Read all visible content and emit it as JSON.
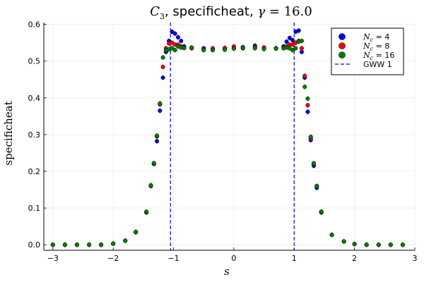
{
  "chart_data": {
    "type": "scatter",
    "title_parts": {
      "lead": "C",
      "lead_sub": "3",
      "middle": ", specificheat, ",
      "gamma": "γ",
      "tail": " = 16.0"
    },
    "xlabel": "s",
    "ylabel": "specificheat",
    "xlim": [
      -3.15,
      3.0
    ],
    "ylim": [
      -0.015,
      0.605
    ],
    "xticks": [
      -3,
      -2,
      -1,
      0,
      1,
      2,
      3
    ],
    "xtick_labels": [
      "−3",
      "−2",
      "−1",
      "0",
      "1",
      "2",
      "3"
    ],
    "yticks": [
      0.0,
      0.1,
      0.2,
      0.3,
      0.4,
      0.5,
      0.6
    ],
    "ytick_labels": [
      "0.0",
      "0.1",
      "0.2",
      "0.3",
      "0.4",
      "0.5",
      "0.6"
    ],
    "grid": true,
    "legend_position": "top-right",
    "series": [
      {
        "legend_sym": "N",
        "legend_sub": "c",
        "legend_tail": " = 4",
        "color": "#0000ff",
        "points": [
          [
            -3.0,
            0.0
          ],
          [
            -2.8,
            0.0
          ],
          [
            -2.6,
            0.0
          ],
          [
            -2.4,
            0.0
          ],
          [
            -2.2,
            0.0
          ],
          [
            -2.0,
            0.003
          ],
          [
            -1.8,
            0.011
          ],
          [
            -1.625,
            0.034
          ],
          [
            -1.45,
            0.088
          ],
          [
            -1.375,
            0.16
          ],
          [
            -1.325,
            0.22
          ],
          [
            -1.275,
            0.282
          ],
          [
            -1.225,
            0.365
          ],
          [
            -1.175,
            0.455
          ],
          [
            -1.125,
            0.525
          ],
          [
            -1.075,
            0.555
          ],
          [
            -1.025,
            0.58
          ],
          [
            -0.975,
            0.575
          ],
          [
            -0.925,
            0.565
          ],
          [
            -0.875,
            0.555
          ],
          [
            -0.825,
            0.54
          ],
          [
            -0.7,
            0.537
          ],
          [
            -0.5,
            0.535
          ],
          [
            -0.35,
            0.532
          ],
          [
            -0.15,
            0.533
          ],
          [
            0.0,
            0.535
          ],
          [
            0.15,
            0.538
          ],
          [
            0.35,
            0.542
          ],
          [
            0.5,
            0.537
          ],
          [
            0.7,
            0.535
          ],
          [
            0.825,
            0.54
          ],
          [
            0.875,
            0.553
          ],
          [
            0.925,
            0.563
          ],
          [
            0.975,
            0.557
          ],
          [
            1.025,
            0.58
          ],
          [
            1.075,
            0.583
          ],
          [
            1.125,
            0.525
          ],
          [
            1.175,
            0.455
          ],
          [
            1.225,
            0.362
          ],
          [
            1.275,
            0.285
          ],
          [
            1.325,
            0.215
          ],
          [
            1.375,
            0.155
          ],
          [
            1.45,
            0.088
          ],
          [
            1.625,
            0.027
          ],
          [
            1.825,
            0.009
          ],
          [
            2.0,
            0.002
          ],
          [
            2.2,
            0.0
          ],
          [
            2.4,
            0.0
          ],
          [
            2.6,
            0.0
          ],
          [
            2.8,
            0.0
          ]
        ]
      },
      {
        "legend_sym": "N",
        "legend_sub": "c",
        "legend_tail": " = 8",
        "color": "#ff0000",
        "points": [
          [
            -3.0,
            0.0
          ],
          [
            -2.8,
            0.0
          ],
          [
            -2.6,
            0.0
          ],
          [
            -2.4,
            0.0
          ],
          [
            -2.2,
            0.0
          ],
          [
            -2.0,
            0.003
          ],
          [
            -1.8,
            0.011
          ],
          [
            -1.625,
            0.035
          ],
          [
            -1.45,
            0.089
          ],
          [
            -1.375,
            0.16
          ],
          [
            -1.325,
            0.222
          ],
          [
            -1.275,
            0.295
          ],
          [
            -1.225,
            0.382
          ],
          [
            -1.175,
            0.484
          ],
          [
            -1.125,
            0.535
          ],
          [
            -1.075,
            0.548
          ],
          [
            -1.025,
            0.55
          ],
          [
            -0.975,
            0.545
          ],
          [
            -0.925,
            0.545
          ],
          [
            -0.875,
            0.54
          ],
          [
            -0.825,
            0.536
          ],
          [
            -0.7,
            0.535
          ],
          [
            -0.5,
            0.532
          ],
          [
            -0.35,
            0.535
          ],
          [
            -0.15,
            0.536
          ],
          [
            0.0,
            0.54
          ],
          [
            0.15,
            0.535
          ],
          [
            0.35,
            0.538
          ],
          [
            0.5,
            0.537
          ],
          [
            0.7,
            0.535
          ],
          [
            0.825,
            0.537
          ],
          [
            0.875,
            0.54
          ],
          [
            0.925,
            0.545
          ],
          [
            0.975,
            0.545
          ],
          [
            1.025,
            0.55
          ],
          [
            1.075,
            0.555
          ],
          [
            1.125,
            0.535
          ],
          [
            1.175,
            0.46
          ],
          [
            1.225,
            0.38
          ],
          [
            1.275,
            0.29
          ],
          [
            1.325,
            0.22
          ],
          [
            1.375,
            0.16
          ],
          [
            1.45,
            0.09
          ],
          [
            1.625,
            0.027
          ],
          [
            1.825,
            0.009
          ],
          [
            2.0,
            0.002
          ],
          [
            2.2,
            0.0
          ],
          [
            2.4,
            0.0
          ],
          [
            2.6,
            0.0
          ],
          [
            2.8,
            0.0
          ]
        ]
      },
      {
        "legend_sym": "N",
        "legend_sub": "c",
        "legend_tail": " = 16",
        "color": "#008000",
        "points": [
          [
            -3.0,
            0.0
          ],
          [
            -2.8,
            0.0
          ],
          [
            -2.6,
            0.0
          ],
          [
            -2.4,
            0.0
          ],
          [
            -2.2,
            0.0
          ],
          [
            -2.0,
            0.003
          ],
          [
            -1.8,
            0.011
          ],
          [
            -1.625,
            0.035
          ],
          [
            -1.45,
            0.09
          ],
          [
            -1.375,
            0.162
          ],
          [
            -1.325,
            0.222
          ],
          [
            -1.275,
            0.297
          ],
          [
            -1.225,
            0.385
          ],
          [
            -1.175,
            0.51
          ],
          [
            -1.125,
            0.53
          ],
          [
            -1.075,
            0.532
          ],
          [
            -1.025,
            0.535
          ],
          [
            -0.975,
            0.53
          ],
          [
            -0.925,
            0.54
          ],
          [
            -0.875,
            0.537
          ],
          [
            -0.825,
            0.536
          ],
          [
            -0.7,
            0.537
          ],
          [
            -0.5,
            0.53
          ],
          [
            -0.35,
            0.53
          ],
          [
            -0.15,
            0.531
          ],
          [
            0.0,
            0.534
          ],
          [
            0.15,
            0.536
          ],
          [
            0.35,
            0.535
          ],
          [
            0.5,
            0.533
          ],
          [
            0.7,
            0.534
          ],
          [
            0.825,
            0.535
          ],
          [
            0.875,
            0.537
          ],
          [
            0.925,
            0.535
          ],
          [
            0.975,
            0.53
          ],
          [
            1.025,
            0.535
          ],
          [
            1.075,
            0.553
          ],
          [
            1.125,
            0.555
          ],
          [
            1.175,
            0.43
          ],
          [
            1.225,
            0.398
          ],
          [
            1.275,
            0.294
          ],
          [
            1.325,
            0.222
          ],
          [
            1.375,
            0.16
          ],
          [
            1.45,
            0.09
          ],
          [
            1.625,
            0.027
          ],
          [
            1.825,
            0.009
          ],
          [
            2.0,
            0.002
          ],
          [
            2.2,
            0.0
          ],
          [
            2.4,
            0.0
          ],
          [
            2.6,
            0.0
          ],
          [
            2.8,
            0.0
          ]
        ]
      }
    ],
    "vlines": {
      "label": "GWW 1",
      "color": "#0000ff",
      "x": [
        -1.05,
        1.0
      ]
    }
  }
}
